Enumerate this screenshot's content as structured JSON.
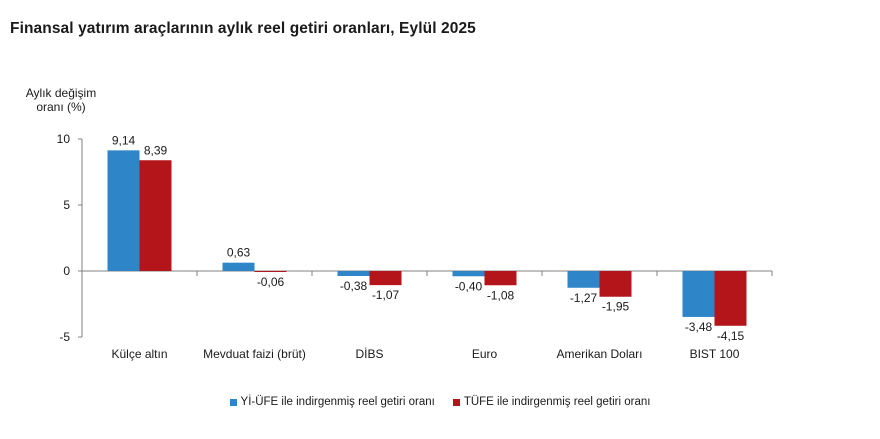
{
  "chart_data": {
    "type": "bar",
    "title": "Finansal yatırım araçlarının aylık reel getiri oranları, Eylül 2025",
    "ylabel": "Aylık değişim oranı (%)",
    "xlabel": "",
    "ylim": [
      -5,
      10
    ],
    "yticks": [
      10,
      5,
      0,
      -5
    ],
    "categories": [
      "Külçe altın",
      "Mevduat faizi (brüt)",
      "DİBS",
      "Euro",
      "Amerikan Doları",
      "BIST 100"
    ],
    "series": [
      {
        "name": "Yİ-ÜFE ile indirgenmiş reel getiri oranı",
        "color": "#2e86c8",
        "values": [
          9.14,
          0.63,
          -0.38,
          -0.4,
          -1.27,
          -3.48
        ],
        "labels": [
          "9,14",
          "0,63",
          "-0,38",
          "-0,40",
          "-1,27",
          "-3,48"
        ]
      },
      {
        "name": "TÜFE ile indirgenmiş reel getiri oranı",
        "color": "#b3151b",
        "values": [
          8.39,
          -0.06,
          -1.07,
          -1.08,
          -1.95,
          -4.15
        ],
        "labels": [
          "8,39",
          "-0,06",
          "-1,07",
          "-1,08",
          "-1,95",
          "-4,15"
        ]
      }
    ],
    "grid": false,
    "legend": "bottom"
  }
}
